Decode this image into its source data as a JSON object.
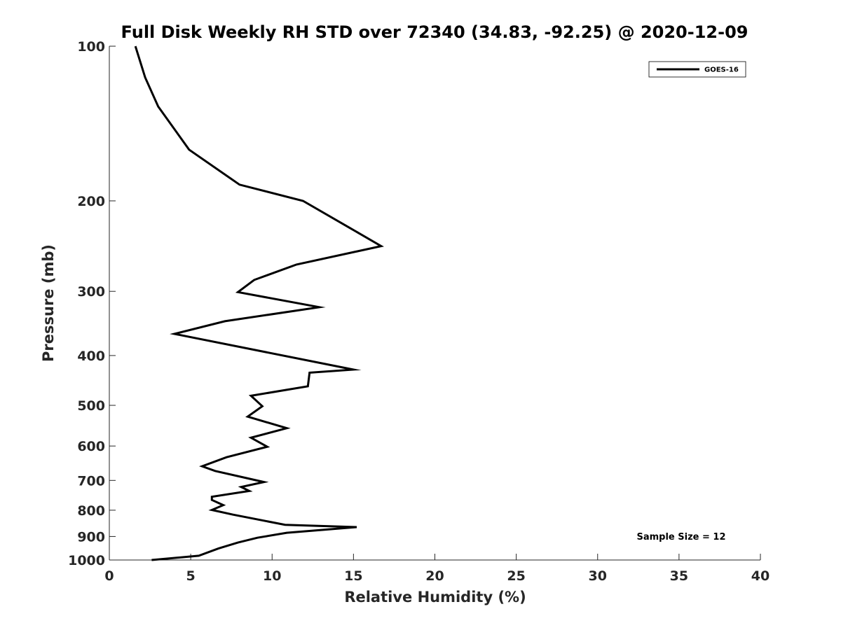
{
  "chart_data": {
    "type": "line",
    "title": "Full Disk Weekly RH STD over 72340 (34.83, -92.25) @ 2020-12-09",
    "xlabel": "Relative Humidity (%)",
    "ylabel": "Pressure (mb)",
    "xlim": [
      0,
      40
    ],
    "ylim": [
      1000,
      100
    ],
    "yscale": "log",
    "y_reversed": true,
    "grid": false,
    "legend_position": "top-right",
    "x_ticks": [
      "0",
      "5",
      "10",
      "15",
      "20",
      "25",
      "30",
      "35",
      "40"
    ],
    "y_ticks": [
      "100",
      "200",
      "300",
      "400",
      "500",
      "600",
      "700",
      "800",
      "900",
      "1000"
    ],
    "annotation": "Sample Size = 12",
    "series": [
      {
        "name": "GOES-16",
        "color": "#000000",
        "x": [
          1.6,
          2.2,
          3.0,
          4.9,
          8.0,
          11.9,
          14.8,
          16.7,
          11.5,
          8.9,
          7.9,
          12.9,
          7.1,
          4.0,
          15.0,
          12.3,
          12.2,
          8.7,
          9.4,
          8.5,
          10.9,
          8.7,
          9.7,
          7.2,
          5.7,
          6.5,
          9.5,
          8.1,
          8.6,
          6.3,
          6.3,
          7.0,
          6.3,
          7.6,
          10.8,
          15.2,
          10.9,
          9.1,
          7.9,
          6.7,
          5.5,
          2.6
        ],
        "y": [
          100,
          115,
          131,
          159,
          186,
          200,
          226,
          245,
          266,
          285,
          301,
          322,
          343,
          363,
          426,
          432,
          459,
          479,
          502,
          526,
          554,
          578,
          602,
          631,
          657,
          671,
          705,
          721,
          734,
          753,
          764,
          782,
          799,
          816,
          854,
          863,
          885,
          905,
          925,
          950,
          981,
          1000
        ]
      }
    ]
  }
}
